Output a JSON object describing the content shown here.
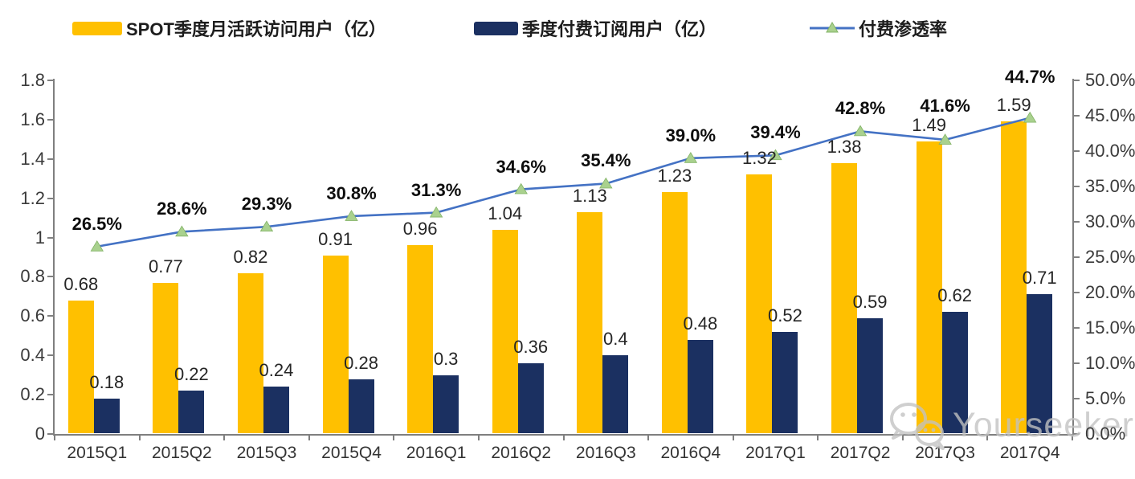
{
  "legend": [
    {
      "label": "SPOT季度月活跃访问用户（亿）",
      "type": "bar",
      "color": "#FFC000"
    },
    {
      "label": "季度付费订阅用户（亿）",
      "type": "bar",
      "color": "#1B3061"
    },
    {
      "label": "付费渗透率",
      "type": "line",
      "color": "#4472C4",
      "marker_color": "#A9D18E"
    }
  ],
  "chart_data": {
    "type": "bar+line combo",
    "categories": [
      "2015Q1",
      "2015Q2",
      "2015Q3",
      "2015Q4",
      "2016Q1",
      "2016Q2",
      "2016Q3",
      "2016Q4",
      "2017Q1",
      "2017Q2",
      "2017Q3",
      "2017Q4"
    ],
    "series": [
      {
        "name": "SPOT季度月活跃访问用户（亿）",
        "type": "bar",
        "axis": "left",
        "color": "#FFC000",
        "values": [
          0.68,
          0.77,
          0.82,
          0.91,
          0.96,
          1.04,
          1.13,
          1.23,
          1.32,
          1.38,
          1.49,
          1.59
        ],
        "labels": [
          "0.68",
          "0.77",
          "0.82",
          "0.91",
          "0.96",
          "1.04",
          "1.13",
          "1.23",
          "1.32",
          "1.38",
          "1.49",
          "1.59"
        ]
      },
      {
        "name": "季度付费订阅用户（亿）",
        "type": "bar",
        "axis": "left",
        "color": "#1B3061",
        "values": [
          0.18,
          0.22,
          0.24,
          0.28,
          0.3,
          0.36,
          0.4,
          0.48,
          0.52,
          0.59,
          0.62,
          0.71
        ],
        "labels": [
          "0.18",
          "0.22",
          "0.24",
          "0.28",
          "0.3",
          "0.36",
          "0.4",
          "0.48",
          "0.52",
          "0.59",
          "0.62",
          "0.71"
        ]
      },
      {
        "name": "付费渗透率",
        "type": "line",
        "axis": "right",
        "color": "#4472C4",
        "marker": "triangle",
        "marker_color": "#A9D18E",
        "values": [
          26.5,
          28.6,
          29.3,
          30.8,
          31.3,
          34.6,
          35.4,
          39.0,
          39.4,
          42.8,
          41.6,
          44.7
        ],
        "labels": [
          "26.5%",
          "28.6%",
          "29.3%",
          "30.8%",
          "31.3%",
          "34.6%",
          "35.4%",
          "39.0%",
          "39.4%",
          "42.8%",
          "41.6%",
          "44.7%"
        ]
      }
    ],
    "left_axis": {
      "min": 0,
      "max": 1.8,
      "ticks": [
        "1.8",
        "1.6",
        "1.4",
        "1.2",
        "1",
        "0.8",
        "0.6",
        "0.4",
        "0.2",
        "0"
      ]
    },
    "right_axis": {
      "min": 0,
      "max": 50,
      "ticks": [
        "50.0%",
        "45.0%",
        "40.0%",
        "35.0%",
        "30.0%",
        "25.0%",
        "20.0%",
        "15.0%",
        "10.0%",
        "5.0%",
        "0.0%"
      ]
    },
    "grid": false,
    "legend_position": "top"
  },
  "watermark": {
    "icon": "wechat-icon",
    "text": "Yourseeker"
  }
}
